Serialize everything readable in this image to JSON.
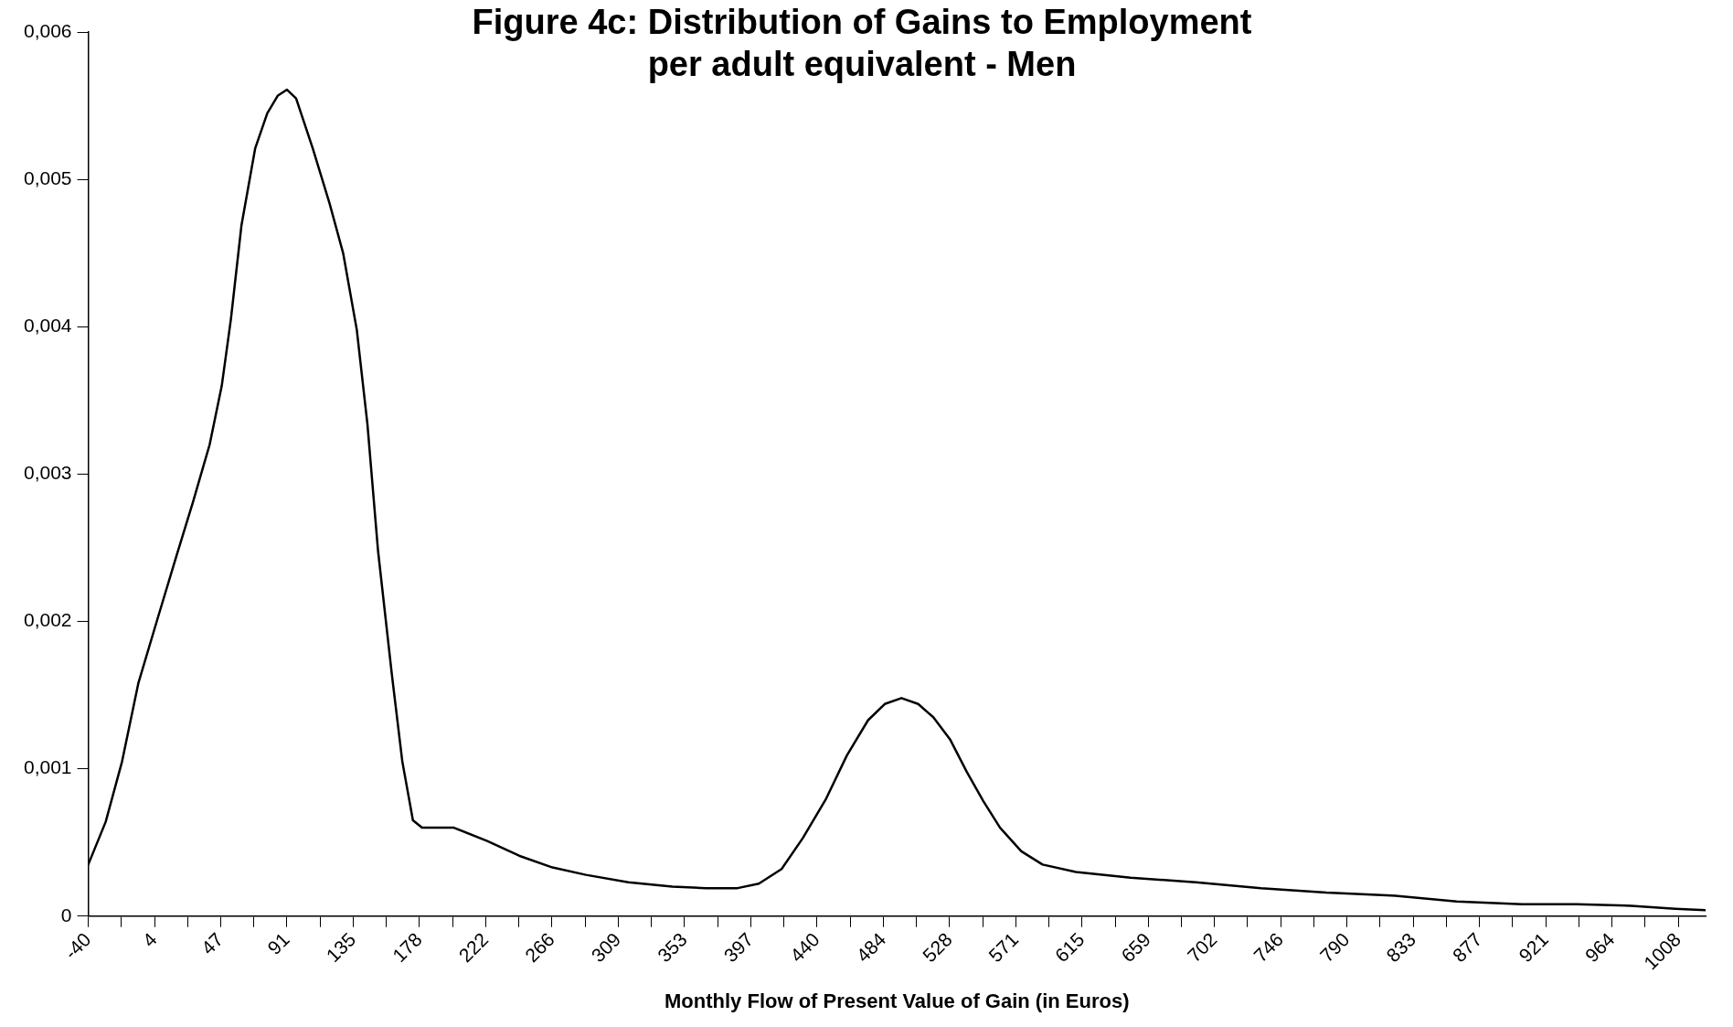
{
  "chart_data": {
    "type": "line",
    "title": "Figure 4c: Distribution of Gains to Employment\nper adult equivalent - Men",
    "xlabel": "Monthly Flow of Present Value of Gain (in Euros)",
    "grid": false,
    "legend": false,
    "marker": "none",
    "line_style": "solid",
    "x": [
      -40,
      -28.5,
      -17.7,
      -7,
      6,
      18,
      29,
      40,
      48,
      54,
      61,
      70,
      78,
      85,
      91,
      97,
      108,
      119,
      128,
      137,
      144,
      151,
      160,
      167,
      174,
      180,
      191,
      201,
      223,
      244,
      266,
      288,
      316,
      345,
      367,
      388,
      402,
      417,
      431,
      446,
      460,
      474,
      485,
      496,
      507,
      517,
      528,
      539,
      550,
      561,
      575,
      589,
      611,
      647,
      690,
      733,
      776,
      819,
      862,
      905,
      941,
      977,
      1006,
      1026
    ],
    "series": [
      {
        "color": "#000000",
        "values": [
          0.00035,
          0.00064,
          0.00105,
          0.00158,
          0.00203,
          0.00244,
          0.00281,
          0.0032,
          0.0036,
          0.00405,
          0.00469,
          0.00521,
          0.00545,
          0.00557,
          0.00561,
          0.00555,
          0.00521,
          0.00484,
          0.0045,
          0.00398,
          0.00334,
          0.00248,
          0.00165,
          0.00105,
          0.00065,
          0.0006,
          0.0006,
          0.0006,
          0.00051,
          0.00041,
          0.00033,
          0.00028,
          0.00023,
          0.0002,
          0.00019,
          0.00019,
          0.00022,
          0.00032,
          0.00053,
          0.00079,
          0.00109,
          0.00133,
          0.00144,
          0.00148,
          0.00144,
          0.00135,
          0.0012,
          0.00098,
          0.00078,
          0.0006,
          0.00044,
          0.00035,
          0.0003,
          0.00026,
          0.00023,
          0.00019,
          0.00016,
          0.00014,
          0.0001,
          8e-05,
          8e-05,
          7e-05,
          5e-05,
          4e-05
        ]
      }
    ],
    "xlim": [
      -40,
      1026
    ],
    "xticks": [
      {
        "value": -40,
        "label": "-40"
      },
      {
        "value": -18.17,
        "label": null
      },
      {
        "value": 3.67,
        "label": "4"
      },
      {
        "value": 25.5,
        "label": null
      },
      {
        "value": 47.33,
        "label": "47"
      },
      {
        "value": 69.17,
        "label": null
      },
      {
        "value": 91,
        "label": "91"
      },
      {
        "value": 112.83,
        "label": null
      },
      {
        "value": 134.67,
        "label": "135"
      },
      {
        "value": 156.5,
        "label": null
      },
      {
        "value": 178.33,
        "label": "178"
      },
      {
        "value": 200.17,
        "label": null
      },
      {
        "value": 222,
        "label": "222"
      },
      {
        "value": 243.83,
        "label": null
      },
      {
        "value": 265.67,
        "label": "266"
      },
      {
        "value": 287.5,
        "label": null
      },
      {
        "value": 309.33,
        "label": "309"
      },
      {
        "value": 331.17,
        "label": null
      },
      {
        "value": 353,
        "label": "353"
      },
      {
        "value": 374.83,
        "label": null
      },
      {
        "value": 396.67,
        "label": "397"
      },
      {
        "value": 418.5,
        "label": null
      },
      {
        "value": 440.33,
        "label": "440"
      },
      {
        "value": 462.17,
        "label": null
      },
      {
        "value": 484,
        "label": "484"
      },
      {
        "value": 505.83,
        "label": null
      },
      {
        "value": 527.67,
        "label": "528"
      },
      {
        "value": 549.5,
        "label": null
      },
      {
        "value": 571.33,
        "label": "571"
      },
      {
        "value": 593.17,
        "label": null
      },
      {
        "value": 615,
        "label": "615"
      },
      {
        "value": 636.83,
        "label": null
      },
      {
        "value": 658.67,
        "label": "659"
      },
      {
        "value": 680.5,
        "label": null
      },
      {
        "value": 702.33,
        "label": "702"
      },
      {
        "value": 724.17,
        "label": null
      },
      {
        "value": 746,
        "label": "746"
      },
      {
        "value": 767.83,
        "label": null
      },
      {
        "value": 789.67,
        "label": "790"
      },
      {
        "value": 811.5,
        "label": null
      },
      {
        "value": 833.33,
        "label": "833"
      },
      {
        "value": 855.17,
        "label": null
      },
      {
        "value": 877,
        "label": "877"
      },
      {
        "value": 898.83,
        "label": null
      },
      {
        "value": 920.67,
        "label": "921"
      },
      {
        "value": 942.5,
        "label": null
      },
      {
        "value": 964.33,
        "label": "964"
      },
      {
        "value": 986.17,
        "label": null
      },
      {
        "value": 1008,
        "label": "1008"
      }
    ],
    "ylim": [
      0,
      0.006
    ],
    "yticks": [
      {
        "value": 0,
        "label": "0"
      },
      {
        "value": 0.001,
        "label": "0,001"
      },
      {
        "value": 0.002,
        "label": "0,002"
      },
      {
        "value": 0.003,
        "label": "0,003"
      },
      {
        "value": 0.004,
        "label": "0,004"
      },
      {
        "value": 0.005,
        "label": "0,005"
      },
      {
        "value": 0.006,
        "label": "0,006"
      }
    ]
  }
}
